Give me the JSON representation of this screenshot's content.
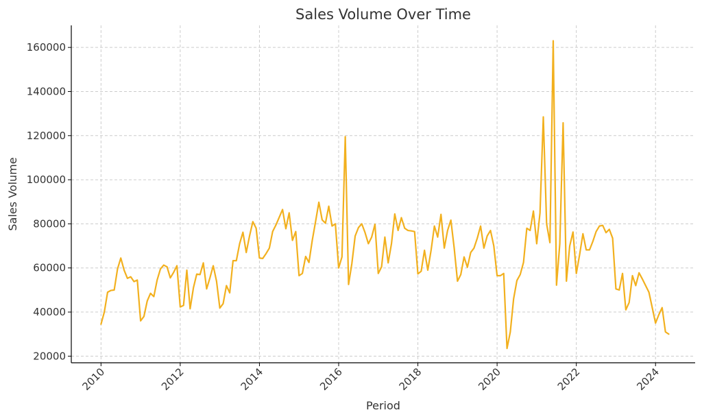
{
  "chart_data": {
    "type": "line",
    "title": "Sales Volume Over Time",
    "xlabel": "Period",
    "ylabel": "Sales Volume",
    "grid": true,
    "xlim": [
      2009.25,
      2025.0
    ],
    "ylim": [
      17000,
      170000
    ],
    "x_ticks": [
      2010,
      2012,
      2014,
      2016,
      2018,
      2020,
      2022,
      2024
    ],
    "x_tick_labels": [
      "2010",
      "2012",
      "2014",
      "2016",
      "2018",
      "2020",
      "2022",
      "2024"
    ],
    "y_ticks": [
      20000,
      40000,
      60000,
      80000,
      100000,
      120000,
      140000,
      160000
    ],
    "y_tick_labels": [
      "20000",
      "40000",
      "60000",
      "80000",
      "100000",
      "120000",
      "140000",
      "160000"
    ],
    "series_color": "#f2b01e",
    "series": [
      {
        "x_start": "2010-01",
        "frequency": "monthly",
        "values": [
          34500,
          40000,
          49000,
          49800,
          50000,
          59500,
          64500,
          59000,
          55300,
          56000,
          53800,
          54500,
          36000,
          38000,
          45000,
          48500,
          47000,
          54500,
          59500,
          61300,
          60500,
          55500,
          58000,
          61000,
          42300,
          43000,
          59000,
          41500,
          51000,
          57200,
          57000,
          62300,
          50500,
          55500,
          61000,
          54000,
          41800,
          43800,
          52000,
          48700,
          63300,
          63300,
          71000,
          76200,
          67000,
          74500,
          81000,
          78000,
          64500,
          64300,
          66500,
          69000,
          76500,
          79500,
          83000,
          86500,
          77800,
          85000,
          72500,
          76500,
          56500,
          57500,
          65200,
          62500,
          72500,
          81000,
          89800,
          81800,
          80300,
          88000,
          79000,
          80000,
          60000,
          65000,
          119500,
          52500,
          62000,
          74500,
          78300,
          80000,
          76000,
          71000,
          74000,
          79800,
          57500,
          60500,
          74000,
          62300,
          71000,
          84500,
          77000,
          82800,
          78000,
          77000,
          76800,
          76500,
          57300,
          58500,
          68000,
          59000,
          68000,
          79000,
          74000,
          84300,
          69000,
          77000,
          81700,
          69000,
          54000,
          57000,
          65000,
          60300,
          67000,
          69000,
          73500,
          79000,
          69000,
          74500,
          77000,
          70000,
          56500,
          56500,
          57500,
          23500,
          31000,
          46000,
          54300,
          57000,
          62500,
          78000,
          77000,
          85800,
          71000,
          85000,
          128500,
          80000,
          71500,
          163000,
          52200,
          71000,
          125800,
          54000,
          70000,
          76300,
          57500,
          66000,
          75500,
          68200,
          68200,
          72000,
          76500,
          79000,
          79300,
          76000,
          77500,
          73500,
          50500,
          50000,
          57500,
          41000,
          44300,
          56500,
          52000,
          57800,
          55000,
          52000,
          49000,
          42000,
          35000,
          38800,
          42000,
          31000,
          30000
        ]
      }
    ]
  }
}
